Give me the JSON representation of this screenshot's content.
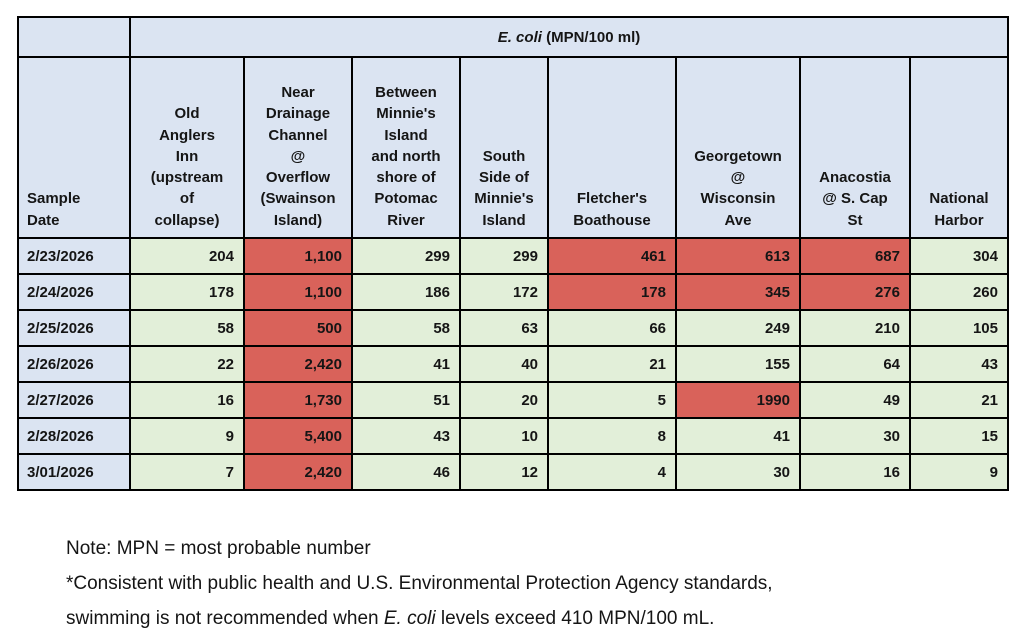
{
  "colors": {
    "header_fill": "#dbe4f2",
    "normal_fill": "#e2efd9",
    "exceedance_fill": "#d9625a",
    "border": "#000000",
    "background": "#ffffff"
  },
  "table": {
    "unit_header": {
      "italic": "E. coli",
      "rest": " (MPN/100 ml)"
    },
    "corner_label": "Sample\nDate",
    "columns": [
      "Old\nAnglers\nInn\n(upstream\nof\ncollapse)",
      "Near\nDrainage\nChannel\n@\nOverflow\n(Swainson\nIsland)",
      "Between\nMinnie's\nIsland\nand north\nshore of\nPotomac\nRiver",
      "South\nSide of\nMinnie's\nIsland",
      "Fletcher's\nBoathouse",
      "Georgetown\n@\nWisconsin\nAve",
      "Anacostia\n@ S. Cap\nSt",
      "National\nHarbor"
    ],
    "rows": [
      {
        "date": "2/23/2026",
        "values": [
          "204",
          "1,100",
          "299",
          "299",
          "461",
          "613",
          "687",
          "304"
        ],
        "red": [
          1,
          4,
          5,
          6
        ]
      },
      {
        "date": "2/24/2026",
        "values": [
          "178",
          "1,100",
          "186",
          "172",
          "178",
          "345",
          "276",
          "260"
        ],
        "red": [
          1,
          4,
          5,
          6
        ]
      },
      {
        "date": "2/25/2026",
        "values": [
          "58",
          "500",
          "58",
          "63",
          "66",
          "249",
          "210",
          "105"
        ],
        "red": [
          1
        ]
      },
      {
        "date": "2/26/2026",
        "values": [
          "22",
          "2,420",
          "41",
          "40",
          "21",
          "155",
          "64",
          "43"
        ],
        "red": [
          1
        ]
      },
      {
        "date": "2/27/2026",
        "values": [
          "16",
          "1,730",
          "51",
          "20",
          "5",
          "1990",
          "49",
          "21"
        ],
        "red": [
          1,
          5
        ]
      },
      {
        "date": "2/28/2026",
        "values": [
          "9",
          "5,400",
          "43",
          "10",
          "8",
          "41",
          "30",
          "15"
        ],
        "red": [
          1
        ]
      },
      {
        "date": "3/01/2026",
        "values": [
          "7",
          "2,420",
          "46",
          "12",
          "4",
          "30",
          "16",
          "9"
        ],
        "red": [
          1
        ]
      }
    ]
  },
  "notes": {
    "line1": "Note: MPN = most probable number",
    "line2": "*Consistent with public health and U.S. Environmental Protection Agency standards,",
    "line3_prefix": "swimming is not recommended when ",
    "line3_italic": "E. coli",
    "line3_suffix": " levels exceed 410 MPN/100 mL."
  },
  "chart_data": {
    "type": "table",
    "title": "E. coli (MPN/100 ml)",
    "categories": [
      "2/23/2026",
      "2/24/2026",
      "2/25/2026",
      "2/26/2026",
      "2/27/2026",
      "2/28/2026",
      "3/01/2026"
    ],
    "series": [
      {
        "name": "Old Anglers Inn (upstream of collapse)",
        "values": [
          204,
          178,
          58,
          22,
          16,
          9,
          7
        ]
      },
      {
        "name": "Near Drainage Channel @ Overflow (Swainson Island)",
        "values": [
          1100,
          1100,
          500,
          2420,
          1730,
          5400,
          2420
        ]
      },
      {
        "name": "Between Minnie's Island and north shore of Potomac River",
        "values": [
          299,
          186,
          58,
          41,
          51,
          43,
          46
        ]
      },
      {
        "name": "South Side of Minnie's Island",
        "values": [
          299,
          172,
          63,
          40,
          20,
          10,
          12
        ]
      },
      {
        "name": "Fletcher's Boathouse",
        "values": [
          461,
          178,
          66,
          21,
          5,
          8,
          4
        ]
      },
      {
        "name": "Georgetown @ Wisconsin Ave",
        "values": [
          613,
          345,
          249,
          155,
          1990,
          41,
          30
        ]
      },
      {
        "name": "Anacostia @ S. Cap St",
        "values": [
          687,
          276,
          210,
          64,
          49,
          30,
          16
        ]
      },
      {
        "name": "National Harbor",
        "values": [
          304,
          260,
          105,
          43,
          21,
          15,
          9
        ]
      }
    ],
    "highlight_rule": "red fill marks flagged exceedance cells",
    "threshold_text": "swimming is not recommended when E. coli levels exceed 410 MPN/100 mL"
  }
}
